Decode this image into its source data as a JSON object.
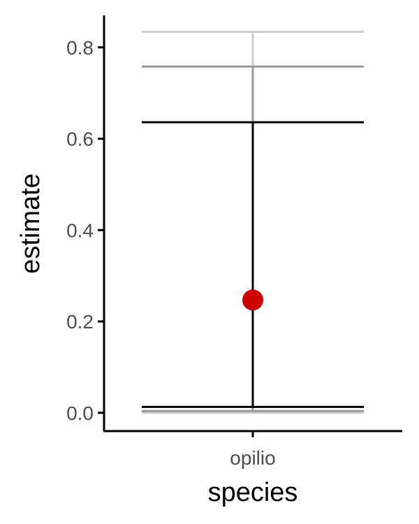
{
  "chart_data": {
    "type": "scatter",
    "xlabel": "species",
    "ylabel": "estimate",
    "categories": [
      "opilio"
    ],
    "ylim": [
      -0.04,
      0.87
    ],
    "yticks": [
      0.0,
      0.2,
      0.4,
      0.6,
      0.8
    ],
    "ytick_labels": [
      "0.0",
      "0.2",
      "0.4",
      "0.6",
      "0.8"
    ],
    "grid": false,
    "point": {
      "category": "opilio",
      "estimate": 0.247,
      "color": "#cc0000"
    },
    "intervals": [
      {
        "lower": 0.0,
        "upper": 0.834,
        "color": "#cccccc"
      },
      {
        "lower": 0.004,
        "upper": 0.758,
        "color": "#999999"
      },
      {
        "lower": 0.013,
        "upper": 0.636,
        "color": "#000000"
      }
    ]
  }
}
